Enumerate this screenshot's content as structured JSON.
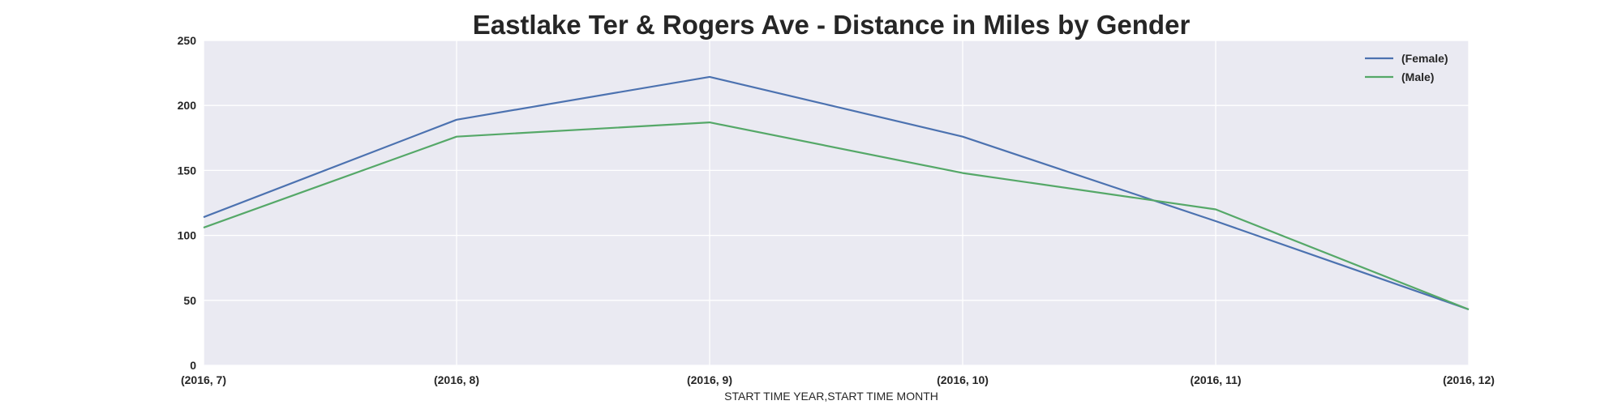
{
  "chart_data": {
    "type": "line",
    "title": "Eastlake Ter & Rogers Ave - Distance in Miles by Gender",
    "xlabel": "START TIME YEAR,START TIME MONTH",
    "ylabel": "",
    "categories": [
      "(2016, 7)",
      "(2016, 8)",
      "(2016, 9)",
      "(2016, 10)",
      "(2016, 11)",
      "(2016, 12)"
    ],
    "ylim": [
      0,
      250
    ],
    "yticks": [
      "0",
      "50",
      "100",
      "150",
      "200",
      "250"
    ],
    "grid": true,
    "legend_position": "top-right",
    "background_color": "#EAEAF2",
    "series": [
      {
        "name": "(Female)",
        "color": "#4C72B0",
        "values": [
          114,
          189,
          222,
          176,
          111,
          43
        ]
      },
      {
        "name": "(Male)",
        "color": "#55A868",
        "values": [
          106,
          176,
          187,
          148,
          120,
          43
        ]
      }
    ]
  }
}
